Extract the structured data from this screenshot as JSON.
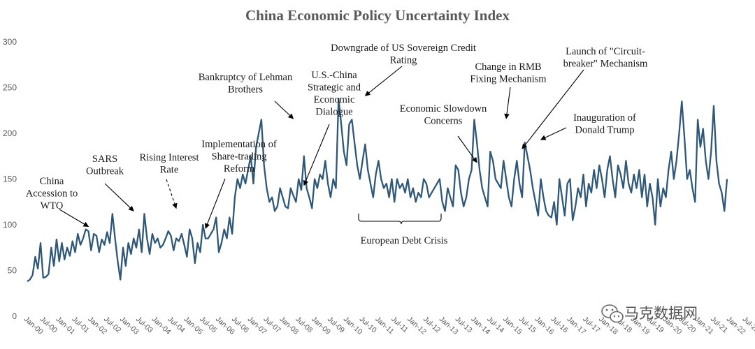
{
  "chart_data": {
    "type": "line",
    "title": "China Economic Policy Uncertainty Index",
    "ylim": [
      0,
      300
    ],
    "yticks": [
      "0",
      "50",
      "100",
      "150",
      "200",
      "250",
      "300"
    ],
    "grid": false,
    "line_color": "#2e5778",
    "x_tick_labels": [
      "Jan-00",
      "Jul-00",
      "Jan-01",
      "Jul-01",
      "Jan-02",
      "Jul-02",
      "Jan-03",
      "Jul-03",
      "Jan-04",
      "Jul-04",
      "Jan-05",
      "Jul-05",
      "Jan-06",
      "Jul-06",
      "Jan-07",
      "Jul-07",
      "Jan-08",
      "Jul-08",
      "Jan-09",
      "Jul-09",
      "Jan-10",
      "Jul-10",
      "Jan-11",
      "Jul-11",
      "Jan-12",
      "Jul-12",
      "Jan-13",
      "Jul-13",
      "Jan-14",
      "Jul-14",
      "Jan-15",
      "Jul-15",
      "Jan-16",
      "Jul-16",
      "Jan-17",
      "Jul-17",
      "Jan-18",
      "Jul-18",
      "Jan-19",
      "Jul-19",
      "Jan-20",
      "Jul-20",
      "Jan-21",
      "Jul-21",
      "Jan-22",
      "Jul-22",
      "Jan-23",
      "Jul-23"
    ],
    "series": [
      {
        "values": [
          38,
          40,
          45,
          65,
          52,
          80,
          42,
          43,
          46,
          75,
          55,
          84,
          60,
          80,
          62,
          75,
          66,
          82,
          70,
          90,
          78,
          85,
          95,
          93,
          72,
          90,
          88,
          70,
          84,
          78,
          92,
          80,
          112,
          85,
          60,
          40,
          75,
          55,
          80,
          68,
          85,
          75,
          95,
          70,
          112,
          85,
          68,
          90,
          80,
          85,
          75,
          78,
          85,
          93,
          88,
          72,
          85,
          82,
          90,
          78,
          65,
          95,
          85,
          58,
          80,
          70,
          100,
          85,
          85,
          90,
          95,
          108,
          70,
          80,
          95,
          85,
          108,
          90,
          130,
          150,
          140,
          155,
          145,
          160,
          175,
          145,
          185,
          200,
          215,
          165,
          140,
          125,
          130,
          115,
          120,
          140,
          130,
          120,
          118,
          140,
          132,
          125,
          150,
          138,
          175,
          140,
          130,
          118,
          150,
          140,
          155,
          150,
          170,
          145,
          130,
          150,
          140,
          238,
          210,
          180,
          165,
          210,
          215,
          190,
          165,
          150,
          170,
          188,
          160,
          145,
          130,
          155,
          170,
          150,
          140,
          145,
          130,
          150,
          125,
          150,
          140,
          145,
          135,
          150,
          130,
          140,
          125,
          135,
          130,
          150,
          145,
          130,
          135,
          140,
          145,
          150,
          125,
          115,
          140,
          130,
          120,
          165,
          160,
          135,
          120,
          130,
          150,
          160,
          215,
          190,
          160,
          140,
          130,
          120,
          180,
          170,
          150,
          145,
          140,
          170,
          150,
          130,
          120,
          150,
          170,
          145,
          130,
          190,
          175,
          160,
          140,
          125,
          110,
          150,
          130,
          115,
          110,
          108,
          125,
          100,
          150,
          130,
          110,
          145,
          150,
          105,
          120,
          140,
          130,
          155,
          120,
          145,
          135,
          160,
          140,
          165,
          150,
          130,
          160,
          175,
          150,
          130,
          165,
          155,
          140,
          170,
          145,
          135,
          155,
          140,
          160,
          130,
          155,
          120,
          145,
          130,
          100,
          150,
          120,
          140,
          130,
          160,
          180,
          150,
          170,
          200,
          235,
          195,
          150,
          160,
          140,
          125,
          215,
          185,
          205,
          170,
          150,
          180,
          230,
          170,
          145,
          135,
          115,
          150
        ]
      }
    ],
    "annotations": [
      {
        "id": "china-wto",
        "lines": [
          "China",
          "Accession to",
          "WTO"
        ],
        "month": 23,
        "value": 95
      },
      {
        "id": "sars",
        "lines": [
          "SARS",
          "Outbreak"
        ],
        "month": 40,
        "value": 112
      },
      {
        "id": "rising-rate",
        "lines": [
          "Rising Interest",
          "Rate"
        ],
        "month": 56,
        "value": 115
      },
      {
        "id": "share-trading",
        "lines": [
          "Implementation of",
          "Share-trading",
          "Reform"
        ],
        "month": 67,
        "value": 93
      },
      {
        "id": "lehman",
        "lines": [
          "Bankruptcy of Lehman",
          "Brothers"
        ],
        "month": 100,
        "value": 213
      },
      {
        "id": "us-china",
        "lines": [
          "U.S.-China",
          "Strategic and",
          "Economic",
          "Dialogue"
        ],
        "month": 104,
        "value": 140
      },
      {
        "id": "us-downgrade",
        "lines": [
          "Downgrade of US Sovereign Credit",
          "Rating"
        ],
        "month": 127,
        "value": 238
      },
      {
        "id": "slowdown",
        "lines": [
          "Economic Slowdown",
          "Concerns"
        ],
        "month": 169,
        "value": 165
      },
      {
        "id": "rmb",
        "lines": [
          "Change in RMB",
          "Fixing Mechanism"
        ],
        "month": 180,
        "value": 213
      },
      {
        "id": "circuit",
        "lines": [
          "Launch of \"Circuit-",
          "breaker\" Mechanism"
        ],
        "month": 186,
        "value": 180
      },
      {
        "id": "trump",
        "lines": [
          "Inauguration of",
          "Donald Trump"
        ],
        "month": 193,
        "value": 190
      }
    ],
    "bracket_label": "European Debt Crisis"
  },
  "watermark": {
    "text": "马克数据网",
    "icon": "wechat-icon"
  }
}
